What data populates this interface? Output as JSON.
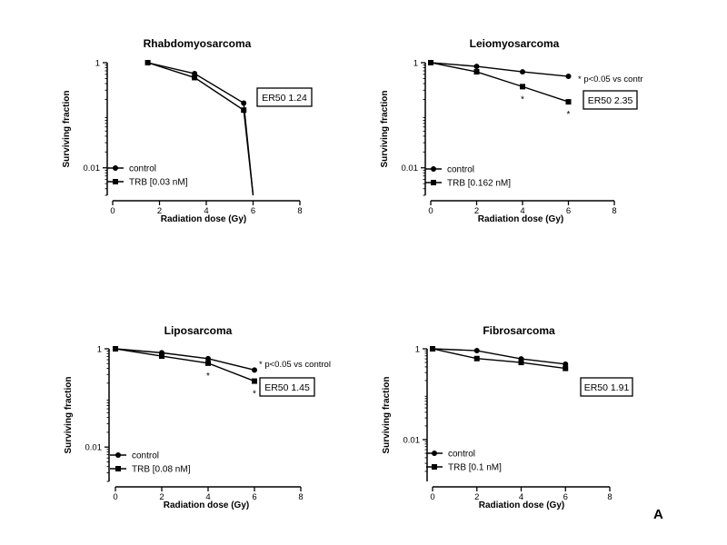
{
  "panel_label": "A",
  "chart_data": [
    {
      "type": "line",
      "title": "Rhabdomyosarcoma",
      "xlabel": "Radiation dose (Gy)",
      "ylabel": "Surviving fraction",
      "yscale": "log",
      "xlim": [
        0,
        8
      ],
      "ylim": [
        0.003,
        1
      ],
      "xticks": [
        "0",
        "2",
        "4",
        "6",
        "8"
      ],
      "yticks": [
        {
          "value": 1,
          "label": "1"
        },
        {
          "value": 0.01,
          "label": "0.01"
        }
      ],
      "grid": false,
      "legend_position": "bottom-left",
      "er50": "ER50 1.24",
      "footnote": "",
      "series": [
        {
          "name": "control",
          "marker": "circle",
          "x": [
            1.5,
            3.5,
            5.6,
            6.0
          ],
          "y": [
            1.0,
            0.62,
            0.17,
            0.003
          ],
          "stars": []
        },
        {
          "name": "TRB [0.03 nM]",
          "marker": "square",
          "x": [
            1.5,
            3.5,
            5.6,
            6.0
          ],
          "y": [
            1.0,
            0.52,
            0.125,
            0.003
          ],
          "stars": []
        }
      ]
    },
    {
      "type": "line",
      "title": "Leiomyosarcoma",
      "xlabel": "Radiation dose (Gy)",
      "ylabel": "Surviving fraction",
      "yscale": "log",
      "xlim": [
        0,
        8
      ],
      "ylim": [
        0.003,
        1
      ],
      "xticks": [
        "0",
        "2",
        "4",
        "6",
        "8"
      ],
      "yticks": [
        {
          "value": 1,
          "label": "1"
        },
        {
          "value": 0.01,
          "label": "0.01"
        }
      ],
      "grid": false,
      "legend_position": "bottom-left",
      "er50": "ER50 2.35",
      "footnote": "* p<0.05 vs contr",
      "series": [
        {
          "name": "control",
          "marker": "circle",
          "x": [
            0,
            2,
            4,
            6
          ],
          "y": [
            1.0,
            0.85,
            0.67,
            0.55
          ],
          "stars": []
        },
        {
          "name": "TRB [0.162 nM]",
          "marker": "square",
          "x": [
            0,
            2,
            4,
            6
          ],
          "y": [
            1.0,
            0.67,
            0.35,
            0.18
          ],
          "stars": [
            4,
            6
          ]
        }
      ]
    },
    {
      "type": "line",
      "title": "Liposarcoma",
      "xlabel": "Radiation dose (Gy)",
      "ylabel": "Surviving fraction",
      "yscale": "log",
      "xlim": [
        0,
        8
      ],
      "ylim": [
        0.002,
        1
      ],
      "xticks": [
        "0",
        "2",
        "4",
        "6",
        "8"
      ],
      "yticks": [
        {
          "value": 1,
          "label": "1"
        },
        {
          "value": 0.01,
          "label": "0.01"
        }
      ],
      "grid": false,
      "legend_position": "bottom-left",
      "er50": "ER50 1.45",
      "footnote": "* p<0.05 vs control",
      "series": [
        {
          "name": "control",
          "marker": "circle",
          "x": [
            0,
            2,
            4,
            6
          ],
          "y": [
            1.0,
            0.83,
            0.63,
            0.37
          ],
          "stars": []
        },
        {
          "name": "TRB [0.08 nM]",
          "marker": "square",
          "x": [
            0,
            2,
            4,
            6
          ],
          "y": [
            1.0,
            0.71,
            0.51,
            0.22
          ],
          "stars": [
            4,
            6
          ]
        }
      ]
    },
    {
      "type": "line",
      "title": "Fibrosarcoma",
      "xlabel": "Radiation dose (Gy)",
      "ylabel": "Surviving fraction",
      "yscale": "log",
      "xlim": [
        0,
        8
      ],
      "ylim": [
        0.0012,
        1
      ],
      "xticks": [
        "0",
        "2",
        "4",
        "6",
        "8"
      ],
      "yticks": [
        {
          "value": 1,
          "label": "1"
        },
        {
          "value": 0.01,
          "label": "0.01"
        }
      ],
      "grid": false,
      "legend_position": "bottom-left",
      "er50": "ER50 1.91",
      "footnote": "",
      "series": [
        {
          "name": "control",
          "marker": "circle",
          "x": [
            0,
            2,
            4,
            6
          ],
          "y": [
            1.0,
            0.91,
            0.6,
            0.46
          ],
          "stars": []
        },
        {
          "name": "TRB [0.1 nM]",
          "marker": "square",
          "x": [
            0,
            2,
            4,
            6
          ],
          "y": [
            1.0,
            0.61,
            0.5,
            0.37
          ],
          "stars": []
        }
      ]
    }
  ]
}
